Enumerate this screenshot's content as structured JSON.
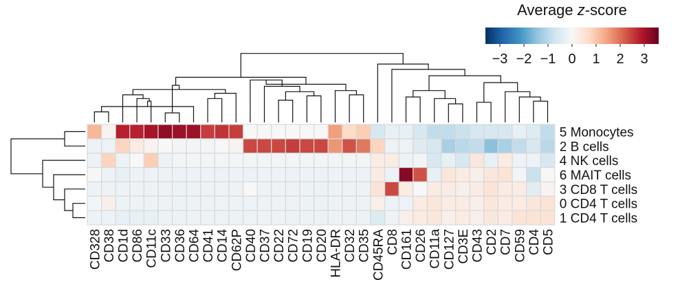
{
  "chart_data": {
    "type": "heatmap",
    "title": "",
    "columns": [
      "CD328",
      "CD38",
      "CD1d",
      "CD86",
      "CD11c",
      "CD33",
      "CD36",
      "CD64",
      "CD41",
      "CD14",
      "CD62P",
      "CD40",
      "CD37",
      "CD22",
      "CD72",
      "CD19",
      "CD20",
      "HLA-DR",
      "CD32",
      "CD35",
      "CD45RA",
      "CD8",
      "CD161",
      "CD26",
      "CD11a",
      "CD127",
      "CD3E",
      "CD43",
      "CD2",
      "CD7",
      "CD59",
      "CD4",
      "CD5"
    ],
    "rows": [
      "5 Monocytes",
      "2 B cells",
      "4 NK cells",
      "6 MAIT cells",
      "3 CD8 T cells",
      "0 CD4 T cells",
      "1 CD4 T cells"
    ],
    "values": [
      [
        1.2,
        0.1,
        2.8,
        2.8,
        3.0,
        3.2,
        3.1,
        3.1,
        2.5,
        2.6,
        2.5,
        0.0,
        0.0,
        0.0,
        0.0,
        0.0,
        0.0,
        1.5,
        0.7,
        0.9,
        -0.6,
        -0.3,
        -0.3,
        -0.6,
        -0.9,
        -0.9,
        -0.8,
        -0.6,
        -0.6,
        -0.6,
        -0.3,
        -0.5,
        -0.9
      ],
      [
        -0.2,
        -0.2,
        0.8,
        0.3,
        0.1,
        0.0,
        -0.1,
        -0.1,
        -0.1,
        0.0,
        0.1,
        2.4,
        2.4,
        2.4,
        2.5,
        2.4,
        2.4,
        1.6,
        2.3,
        1.9,
        0.8,
        -0.2,
        -0.2,
        -0.5,
        -0.6,
        -1.2,
        -1.0,
        -0.9,
        -1.5,
        -1.2,
        -0.9,
        -0.6,
        -1.0
      ],
      [
        -0.2,
        0.8,
        -0.2,
        0.0,
        0.9,
        -0.2,
        -0.1,
        -0.1,
        -0.1,
        -0.1,
        -0.1,
        -0.1,
        -0.1,
        -0.1,
        -0.1,
        -0.1,
        -0.1,
        -0.1,
        -0.1,
        -0.1,
        0.3,
        0.3,
        -0.2,
        -0.1,
        -0.6,
        -0.3,
        -0.6,
        0.4,
        -0.3,
        0.3,
        -0.2,
        -0.2,
        -0.6
      ],
      [
        0.0,
        -0.2,
        -0.3,
        -0.2,
        -0.2,
        -0.2,
        -0.2,
        -0.2,
        -0.2,
        -0.2,
        -0.2,
        -0.2,
        -0.2,
        -0.2,
        -0.2,
        -0.2,
        -0.2,
        -0.2,
        -0.2,
        -0.2,
        0.3,
        -0.2,
        3.3,
        2.3,
        -0.3,
        0.4,
        0.3,
        0.2,
        0.4,
        0.5,
        -0.1,
        -0.8,
        0.0
      ],
      [
        -0.2,
        -0.2,
        -0.2,
        -0.2,
        -0.2,
        -0.2,
        -0.2,
        -0.2,
        -0.2,
        -0.2,
        -0.2,
        0.0,
        -0.2,
        -0.2,
        -0.2,
        -0.2,
        -0.2,
        -0.2,
        -0.2,
        -0.2,
        0.5,
        2.4,
        0.3,
        0.0,
        0.3,
        0.3,
        0.2,
        0.3,
        0.5,
        0.3,
        0.3,
        -0.4,
        0.1
      ],
      [
        -0.1,
        0.2,
        -0.2,
        -0.2,
        -0.2,
        -0.2,
        -0.2,
        -0.2,
        -0.2,
        -0.2,
        -0.2,
        -0.2,
        -0.2,
        -0.2,
        -0.2,
        -0.2,
        -0.2,
        -0.2,
        -0.2,
        -0.2,
        0.2,
        -0.2,
        -0.2,
        0.3,
        0.4,
        0.3,
        0.3,
        0.2,
        0.4,
        0.3,
        0.3,
        0.4,
        0.5
      ],
      [
        -0.2,
        -0.2,
        -0.3,
        -0.3,
        -0.3,
        -0.2,
        -0.2,
        -0.2,
        -0.2,
        -0.2,
        -0.2,
        -0.2,
        -0.2,
        -0.2,
        -0.2,
        -0.2,
        -0.2,
        -0.2,
        -0.2,
        -0.2,
        -0.5,
        -0.2,
        0.2,
        0.3,
        0.4,
        0.2,
        0.3,
        0.2,
        0.4,
        0.3,
        0.5,
        0.5,
        0.5
      ]
    ],
    "colorbar": {
      "label": "Average z-score",
      "label_plain": "Average ",
      "label_italic": "z",
      "label_suffix": "-score",
      "range": [
        -3.6,
        3.6
      ],
      "ticks": [
        -3,
        -2,
        -1,
        0,
        1,
        2,
        3
      ],
      "tick_labels": [
        "−3",
        "−2",
        "−1",
        "0",
        "1",
        "2",
        "3"
      ]
    },
    "colormap": [
      "#053061",
      "#2166ac",
      "#4393c3",
      "#92c5de",
      "#d1e5f0",
      "#f7f7f7",
      "#fddbc7",
      "#f4a582",
      "#d6604d",
      "#b2182b",
      "#67001f"
    ],
    "grid_color": "#d9d9d9",
    "col_dendrogram": [
      [
        0,
        1
      ],
      [
        5,
        6
      ],
      [
        7,
        33
      ],
      [
        4,
        35
      ],
      [
        3,
        36
      ],
      [
        2,
        37
      ],
      [
        8,
        9
      ],
      [
        10,
        39
      ],
      [
        38,
        40
      ],
      [
        34,
        41
      ],
      [
        13,
        14
      ],
      [
        15,
        16
      ],
      [
        43,
        44
      ],
      [
        12,
        45
      ],
      [
        11,
        46
      ],
      [
        18,
        19
      ],
      [
        17,
        48
      ],
      [
        47,
        49
      ],
      [
        42,
        50
      ],
      [
        25,
        26
      ],
      [
        24,
        52
      ],
      [
        22,
        23
      ],
      [
        53,
        54
      ],
      [
        27,
        28
      ],
      [
        31,
        32
      ],
      [
        30,
        57
      ],
      [
        29,
        58
      ],
      [
        56,
        59
      ],
      [
        55,
        60
      ],
      [
        21,
        61
      ],
      [
        20,
        62
      ],
      [
        51,
        63
      ]
    ],
    "row_dendrogram": [
      [
        5,
        6
      ],
      [
        4,
        7
      ],
      [
        3,
        8
      ],
      [
        2,
        9
      ],
      [
        0,
        1
      ],
      [
        10,
        11
      ]
    ]
  }
}
